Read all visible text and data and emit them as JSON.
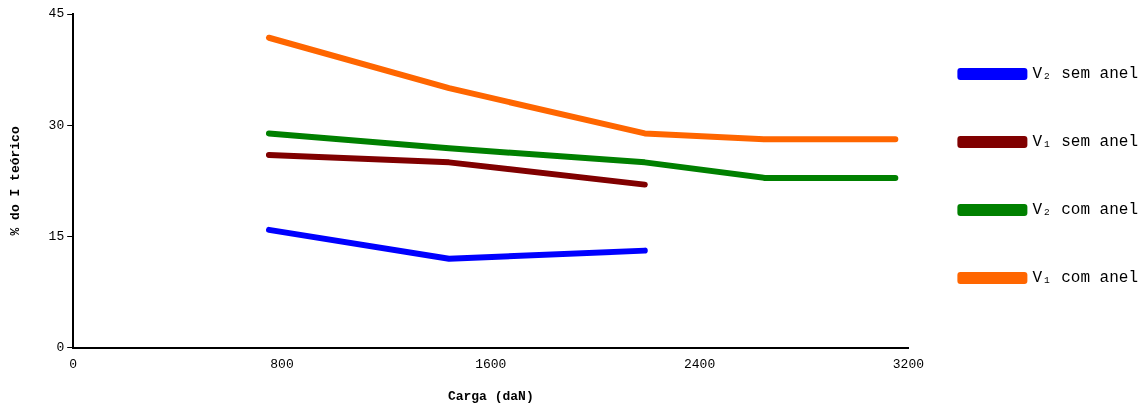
{
  "chart_data": {
    "type": "line",
    "xlabel": "Carga (daN)",
    "ylabel": "% do I teórico",
    "xlim": [
      0,
      3200
    ],
    "xticks": [
      0,
      800,
      1600,
      2400,
      3200
    ],
    "ylim": [
      0,
      45
    ],
    "yticks": [
      0,
      15,
      30,
      45
    ],
    "grid": false,
    "legend": "right",
    "marker": "none",
    "line_style": "solid",
    "series": [
      {
        "name": "V₂ sem anel",
        "color": "#0000ff",
        "x": [
          750,
          1440,
          2190
        ],
        "values": [
          15.9,
          12,
          13.1
        ]
      },
      {
        "name": "V₁ sem anel",
        "color": "#800000",
        "x": [
          750,
          1440,
          2190
        ],
        "values": [
          26,
          25,
          22
        ]
      },
      {
        "name": "V₂ com anel",
        "color": "#008000",
        "x": [
          750,
          1440,
          2190,
          2650,
          3150
        ],
        "values": [
          28.9,
          26.9,
          25,
          22.9,
          22.9
        ]
      },
      {
        "name": "V₁ com anel",
        "color": "#ff6600",
        "x": [
          750,
          1440,
          2190,
          2650,
          3150
        ],
        "values": [
          41.8,
          35,
          28.9,
          28.1,
          28.1
        ]
      }
    ]
  }
}
